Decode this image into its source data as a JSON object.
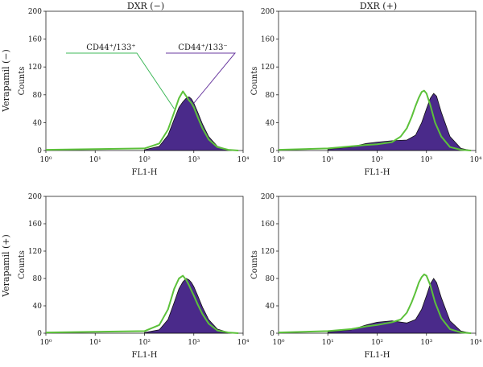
{
  "figure": {
    "column_titles": [
      "DXR (−)",
      "DXR (+)"
    ],
    "row_labels": [
      "Verapamil (−)",
      "Verapamil (+)"
    ]
  },
  "colors": {
    "cd133_negative_fill": "#4a2a8a",
    "cd133_negative_outline": "#111111",
    "cd133_positive_line": "#5cc13a",
    "annotation_positive_line": "#3fb85a",
    "annotation_negative_line": "#6a3aa0"
  },
  "chart_data": [
    {
      "type": "area",
      "panel": "Verapamil (−) / DXR (−)",
      "xlabel": "FL1-H",
      "ylabel": "Counts",
      "x_scale": "log",
      "xlim": [
        1,
        10000
      ],
      "ylim": [
        0,
        200
      ],
      "xticks": [
        1,
        10,
        100,
        1000,
        10000
      ],
      "x_tick_labels": [
        "10⁰",
        "10¹",
        "10²",
        "10³",
        "10⁴"
      ],
      "yticks": [
        0,
        40,
        80,
        120,
        160,
        200
      ],
      "y_tick_labels": [
        "0",
        "40",
        "80",
        "120",
        "160",
        "200"
      ],
      "annotations": [
        "CD44⁺/133⁺",
        "CD44⁺/133⁻"
      ],
      "series": [
        {
          "name": "CD44⁺/133⁻",
          "style": "filled",
          "x": [
            100,
            200,
            300,
            400,
            500,
            600,
            700,
            800,
            900,
            1000,
            1200,
            1500,
            2000,
            3000,
            5000,
            8000
          ],
          "y": [
            1,
            6,
            22,
            45,
            62,
            70,
            75,
            77,
            74,
            68,
            55,
            38,
            20,
            6,
            1,
            0
          ]
        },
        {
          "name": "CD44⁺/133⁺",
          "style": "line",
          "x": [
            1,
            10,
            100,
            200,
            300,
            400,
            500,
            600,
            700,
            800,
            900,
            1000,
            1200,
            1500,
            2000,
            3000,
            5000,
            8000
          ],
          "y": [
            1,
            2,
            3,
            10,
            30,
            55,
            75,
            85,
            78,
            72,
            68,
            62,
            48,
            32,
            16,
            5,
            1,
            0
          ]
        }
      ]
    },
    {
      "type": "area",
      "panel": "Verapamil (−) / DXR (+)",
      "xlabel": "FL1-H",
      "ylabel": "Counts",
      "x_scale": "log",
      "xlim": [
        1,
        10000
      ],
      "ylim": [
        0,
        200
      ],
      "xticks": [
        1,
        10,
        100,
        1000,
        10000
      ],
      "x_tick_labels": [
        "10⁰",
        "10¹",
        "10²",
        "10³",
        "10⁴"
      ],
      "yticks": [
        0,
        40,
        80,
        120,
        160,
        200
      ],
      "y_tick_labels": [
        "0",
        "40",
        "80",
        "120",
        "160",
        "200"
      ],
      "series": [
        {
          "name": "CD44⁺/133⁻",
          "style": "filled",
          "x": [
            10,
            30,
            60,
            100,
            200,
            400,
            600,
            800,
            1000,
            1200,
            1400,
            1600,
            2000,
            3000,
            5000,
            8000
          ],
          "y": [
            2,
            5,
            10,
            12,
            14,
            15,
            22,
            40,
            60,
            75,
            82,
            78,
            55,
            20,
            3,
            0
          ]
        },
        {
          "name": "CD44⁺/133⁺",
          "style": "line",
          "x": [
            1,
            10,
            30,
            60,
            100,
            200,
            300,
            400,
            500,
            600,
            700,
            800,
            900,
            1000,
            1200,
            1500,
            2000,
            3000,
            5000,
            8000
          ],
          "y": [
            1,
            3,
            6,
            8,
            9,
            12,
            20,
            32,
            48,
            64,
            76,
            84,
            86,
            82,
            65,
            40,
            20,
            5,
            1,
            0
          ]
        }
      ]
    },
    {
      "type": "area",
      "panel": "Verapamil (+) / DXR (−)",
      "xlabel": "FL1-H",
      "ylabel": "Counts",
      "x_scale": "log",
      "xlim": [
        1,
        10000
      ],
      "ylim": [
        0,
        200
      ],
      "xticks": [
        1,
        10,
        100,
        1000,
        10000
      ],
      "x_tick_labels": [
        "10⁰",
        "10¹",
        "10²",
        "10³",
        "10⁴"
      ],
      "yticks": [
        0,
        40,
        80,
        120,
        160,
        200
      ],
      "y_tick_labels": [
        "0",
        "40",
        "80",
        "120",
        "160",
        "200"
      ],
      "series": [
        {
          "name": "CD44⁺/133⁻",
          "style": "filled",
          "x": [
            100,
            200,
            300,
            400,
            500,
            600,
            700,
            800,
            900,
            1000,
            1200,
            1500,
            2000,
            3000,
            5000,
            8000
          ],
          "y": [
            1,
            5,
            20,
            45,
            65,
            75,
            80,
            78,
            74,
            68,
            55,
            38,
            20,
            6,
            1,
            0
          ]
        },
        {
          "name": "CD44⁺/133⁺",
          "style": "line",
          "x": [
            1,
            10,
            100,
            200,
            300,
            400,
            500,
            600,
            700,
            800,
            900,
            1000,
            1200,
            1500,
            2000,
            3000,
            5000,
            8000
          ],
          "y": [
            1,
            2,
            3,
            12,
            35,
            65,
            80,
            84,
            78,
            70,
            62,
            55,
            42,
            28,
            14,
            4,
            1,
            0
          ]
        }
      ]
    },
    {
      "type": "area",
      "panel": "Verapamil (+) / DXR (+)",
      "xlabel": "FL1-H",
      "ylabel": "Counts",
      "x_scale": "log",
      "xlim": [
        1,
        10000
      ],
      "ylim": [
        0,
        200
      ],
      "xticks": [
        1,
        10,
        100,
        1000,
        10000
      ],
      "x_tick_labels": [
        "10⁰",
        "10¹",
        "10²",
        "10³",
        "10⁴"
      ],
      "yticks": [
        0,
        40,
        80,
        120,
        160,
        200
      ],
      "y_tick_labels": [
        "0",
        "40",
        "80",
        "120",
        "160",
        "200"
      ],
      "series": [
        {
          "name": "CD44⁺/133⁻",
          "style": "filled",
          "x": [
            10,
            30,
            60,
            100,
            200,
            400,
            600,
            800,
            1000,
            1200,
            1400,
            1600,
            2000,
            3000,
            5000,
            8000
          ],
          "y": [
            2,
            5,
            12,
            16,
            18,
            15,
            20,
            35,
            55,
            72,
            80,
            74,
            52,
            18,
            3,
            0
          ]
        },
        {
          "name": "CD44⁺/133⁺",
          "style": "line",
          "x": [
            1,
            10,
            30,
            60,
            100,
            200,
            300,
            400,
            500,
            600,
            700,
            800,
            900,
            1000,
            1200,
            1500,
            2000,
            3000,
            5000,
            8000
          ],
          "y": [
            1,
            3,
            6,
            10,
            12,
            16,
            20,
            30,
            45,
            60,
            74,
            82,
            86,
            84,
            70,
            45,
            22,
            6,
            1,
            0
          ]
        }
      ]
    }
  ]
}
